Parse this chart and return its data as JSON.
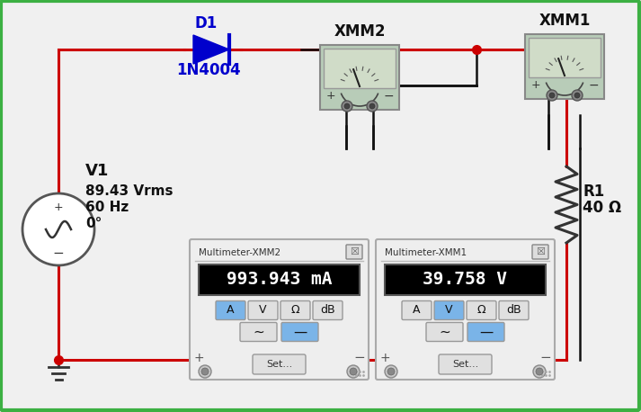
{
  "bg_color": "#f0f0f0",
  "border_color": "#3cb043",
  "wire_color": "#cc0000",
  "black_wire": "#111111",
  "blue_color": "#0000cc",
  "component_bg": "#c0d4c0",
  "title": "",
  "v1_label": "V1",
  "v1_specs": [
    "89.43 Vrms",
    "60 Hz",
    "0°"
  ],
  "d1_label": "D1",
  "d1_model": "1N4004",
  "r1_label": "R1",
  "r1_value": "40 Ω",
  "xmm1_label": "XMM1",
  "xmm2_label": "XMM2",
  "mm1_title": "Multimeter-XMM1",
  "mm2_title": "Multimeter-XMM2",
  "mm1_display": "39.758 V",
  "mm2_display": "993.943 mA",
  "display_bg": "#000000",
  "display_fg": "#ffffff",
  "button_active": "#7ab4e8",
  "button_inactive": "#e0e0e0",
  "panel_bg": "#f4f4f4",
  "panel_border": "#aaaaaa"
}
